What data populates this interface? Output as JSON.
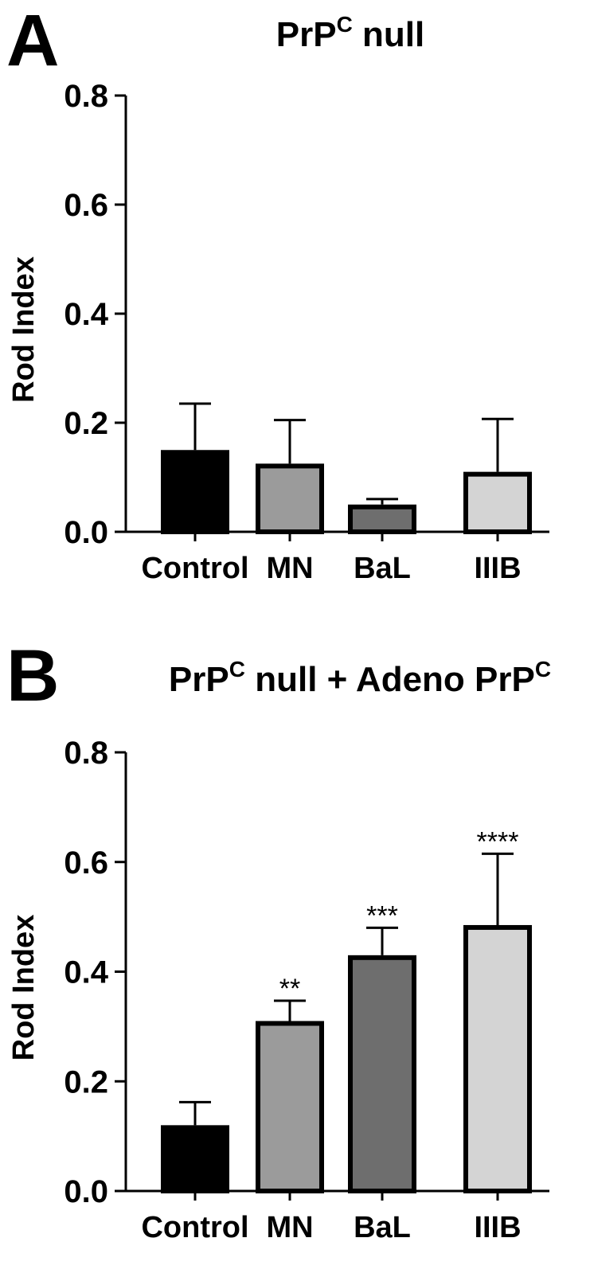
{
  "chart_data": [
    {
      "type": "bar",
      "panel_label": "A",
      "title": "PrPC null",
      "title_parts": [
        {
          "text": "PrP",
          "sup": false
        },
        {
          "text": "C",
          "sup": true
        },
        {
          "text": " null",
          "sup": false
        }
      ],
      "ylabel": "Rod Index",
      "xlabel": "",
      "ylim": [
        0,
        0.8
      ],
      "yticks": [
        "0.0",
        "0.2",
        "0.4",
        "0.6",
        "0.8"
      ],
      "categories": [
        "Control",
        "MN",
        "BaL",
        "IIIB"
      ],
      "values": [
        0.15,
        0.125,
        0.05,
        0.11
      ],
      "errors": [
        0.085,
        0.08,
        0.01,
        0.097
      ],
      "significance": [
        "",
        "",
        "",
        ""
      ],
      "colors": [
        "#000000",
        "#9b9b9b",
        "#6e6e6e",
        "#d4d4d4"
      ]
    },
    {
      "type": "bar",
      "panel_label": "B",
      "title": "PrPC null + Adeno PrPC",
      "title_parts": [
        {
          "text": "PrP",
          "sup": false
        },
        {
          "text": "C",
          "sup": true
        },
        {
          "text": " null + Adeno PrP",
          "sup": false
        },
        {
          "text": "C",
          "sup": true
        }
      ],
      "ylabel": "Rod Index",
      "xlabel": "",
      "ylim": [
        0,
        0.8
      ],
      "yticks": [
        "0.0",
        "0.2",
        "0.4",
        "0.6",
        "0.8"
      ],
      "categories": [
        "Control",
        "MN",
        "BaL",
        "IIIB"
      ],
      "values": [
        0.12,
        0.31,
        0.43,
        0.485
      ],
      "errors": [
        0.042,
        0.037,
        0.05,
        0.13
      ],
      "significance": [
        "",
        "**",
        "***",
        "****"
      ],
      "colors": [
        "#000000",
        "#9b9b9b",
        "#6e6e6e",
        "#d4d4d4"
      ]
    }
  ]
}
